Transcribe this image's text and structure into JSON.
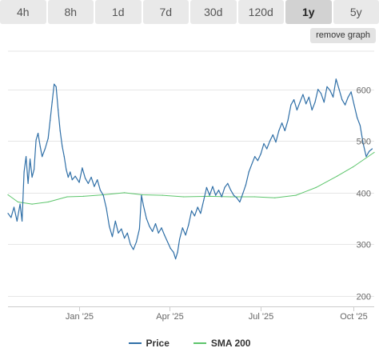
{
  "tabs": [
    {
      "label": "4h",
      "active": false
    },
    {
      "label": "8h",
      "active": false
    },
    {
      "label": "1d",
      "active": false
    },
    {
      "label": "7d",
      "active": false
    },
    {
      "label": "30d",
      "active": false
    },
    {
      "label": "120d",
      "active": false
    },
    {
      "label": "1y",
      "active": true
    },
    {
      "label": "5y",
      "active": false
    }
  ],
  "remove_graph_label": "remove graph",
  "legend": [
    {
      "label": "Price",
      "color": "#2f6fa7"
    },
    {
      "label": "SMA 200",
      "color": "#5cc56b"
    }
  ],
  "chart_data": {
    "type": "line",
    "y_ticks": [
      600,
      500,
      400,
      300,
      200
    ],
    "ylim": [
      180,
      680
    ],
    "xlim": [
      "2024-10-22",
      "2025-10-22"
    ],
    "x_ticks": [
      {
        "date": "2025-01-01",
        "label": "Jan '25"
      },
      {
        "date": "2025-04-01",
        "label": "Apr '25"
      },
      {
        "date": "2025-07-01",
        "label": "Jul '25"
      },
      {
        "date": "2025-10-01",
        "label": "Oct '25"
      }
    ],
    "grid": true,
    "legend_position": "bottom",
    "series": [
      {
        "name": "Price",
        "color": "#2f6fa7",
        "points": [
          [
            "2024-10-22",
            360
          ],
          [
            "2024-10-25",
            352
          ],
          [
            "2024-10-28",
            372
          ],
          [
            "2024-10-31",
            345
          ],
          [
            "2024-11-03",
            378
          ],
          [
            "2024-11-05",
            345
          ],
          [
            "2024-11-07",
            440
          ],
          [
            "2024-11-09",
            470
          ],
          [
            "2024-11-11",
            418
          ],
          [
            "2024-11-13",
            465
          ],
          [
            "2024-11-15",
            430
          ],
          [
            "2024-11-17",
            445
          ],
          [
            "2024-11-19",
            502
          ],
          [
            "2024-11-21",
            515
          ],
          [
            "2024-11-23",
            490
          ],
          [
            "2024-11-25",
            470
          ],
          [
            "2024-11-28",
            485
          ],
          [
            "2024-12-01",
            505
          ],
          [
            "2024-12-03",
            540
          ],
          [
            "2024-12-05",
            575
          ],
          [
            "2024-12-07",
            610
          ],
          [
            "2024-12-09",
            605
          ],
          [
            "2024-12-11",
            560
          ],
          [
            "2024-12-13",
            520
          ],
          [
            "2024-12-15",
            490
          ],
          [
            "2024-12-17",
            470
          ],
          [
            "2024-12-19",
            445
          ],
          [
            "2024-12-21",
            430
          ],
          [
            "2024-12-23",
            440
          ],
          [
            "2024-12-25",
            425
          ],
          [
            "2024-12-28",
            432
          ],
          [
            "2025-01-01",
            420
          ],
          [
            "2025-01-04",
            448
          ],
          [
            "2025-01-07",
            428
          ],
          [
            "2025-01-10",
            418
          ],
          [
            "2025-01-13",
            430
          ],
          [
            "2025-01-16",
            412
          ],
          [
            "2025-01-19",
            425
          ],
          [
            "2025-01-22",
            405
          ],
          [
            "2025-01-25",
            395
          ],
          [
            "2025-01-28",
            370
          ],
          [
            "2025-01-31",
            335
          ],
          [
            "2025-02-03",
            315
          ],
          [
            "2025-02-06",
            345
          ],
          [
            "2025-02-09",
            322
          ],
          [
            "2025-02-12",
            330
          ],
          [
            "2025-02-15",
            312
          ],
          [
            "2025-02-18",
            322
          ],
          [
            "2025-02-21",
            300
          ],
          [
            "2025-02-24",
            290
          ],
          [
            "2025-02-27",
            305
          ],
          [
            "2025-03-02",
            330
          ],
          [
            "2025-03-04",
            395
          ],
          [
            "2025-03-06",
            375
          ],
          [
            "2025-03-09",
            350
          ],
          [
            "2025-03-12",
            335
          ],
          [
            "2025-03-15",
            325
          ],
          [
            "2025-03-18",
            340
          ],
          [
            "2025-03-21",
            322
          ],
          [
            "2025-03-24",
            332
          ],
          [
            "2025-03-27",
            318
          ],
          [
            "2025-03-30",
            305
          ],
          [
            "2025-04-02",
            292
          ],
          [
            "2025-04-05",
            285
          ],
          [
            "2025-04-07",
            272
          ],
          [
            "2025-04-09",
            285
          ],
          [
            "2025-04-11",
            310
          ],
          [
            "2025-04-14",
            332
          ],
          [
            "2025-04-17",
            318
          ],
          [
            "2025-04-20",
            338
          ],
          [
            "2025-04-23",
            365
          ],
          [
            "2025-04-26",
            355
          ],
          [
            "2025-04-29",
            372
          ],
          [
            "2025-05-02",
            360
          ],
          [
            "2025-05-05",
            385
          ],
          [
            "2025-05-08",
            410
          ],
          [
            "2025-05-11",
            395
          ],
          [
            "2025-05-14",
            412
          ],
          [
            "2025-05-17",
            395
          ],
          [
            "2025-05-20",
            405
          ],
          [
            "2025-05-23",
            392
          ],
          [
            "2025-05-26",
            410
          ],
          [
            "2025-05-29",
            418
          ],
          [
            "2025-06-01",
            405
          ],
          [
            "2025-06-04",
            395
          ],
          [
            "2025-06-07",
            390
          ],
          [
            "2025-06-10",
            382
          ],
          [
            "2025-06-13",
            398
          ],
          [
            "2025-06-16",
            415
          ],
          [
            "2025-06-19",
            440
          ],
          [
            "2025-06-22",
            455
          ],
          [
            "2025-06-25",
            470
          ],
          [
            "2025-06-28",
            462
          ],
          [
            "2025-07-01",
            475
          ],
          [
            "2025-07-04",
            495
          ],
          [
            "2025-07-07",
            485
          ],
          [
            "2025-07-10",
            500
          ],
          [
            "2025-07-13",
            512
          ],
          [
            "2025-07-16",
            498
          ],
          [
            "2025-07-19",
            520
          ],
          [
            "2025-07-22",
            535
          ],
          [
            "2025-07-25",
            520
          ],
          [
            "2025-07-28",
            540
          ],
          [
            "2025-07-31",
            570
          ],
          [
            "2025-08-03",
            580
          ],
          [
            "2025-08-06",
            560
          ],
          [
            "2025-08-09",
            575
          ],
          [
            "2025-08-12",
            590
          ],
          [
            "2025-08-15",
            572
          ],
          [
            "2025-08-18",
            585
          ],
          [
            "2025-08-21",
            560
          ],
          [
            "2025-08-24",
            575
          ],
          [
            "2025-08-27",
            600
          ],
          [
            "2025-08-30",
            592
          ],
          [
            "2025-09-02",
            575
          ],
          [
            "2025-09-05",
            605
          ],
          [
            "2025-09-08",
            598
          ],
          [
            "2025-09-11",
            585
          ],
          [
            "2025-09-14",
            620
          ],
          [
            "2025-09-17",
            600
          ],
          [
            "2025-09-20",
            580
          ],
          [
            "2025-09-23",
            570
          ],
          [
            "2025-09-26",
            585
          ],
          [
            "2025-09-29",
            595
          ],
          [
            "2025-10-02",
            570
          ],
          [
            "2025-10-05",
            545
          ],
          [
            "2025-10-08",
            530
          ],
          [
            "2025-10-11",
            495
          ],
          [
            "2025-10-14",
            470
          ],
          [
            "2025-10-17",
            480
          ],
          [
            "2025-10-20",
            485
          ]
        ]
      },
      {
        "name": "SMA 200",
        "color": "#5cc56b",
        "points": [
          [
            "2024-10-22",
            396
          ],
          [
            "2024-11-01",
            382
          ],
          [
            "2024-11-15",
            378
          ],
          [
            "2024-12-01",
            382
          ],
          [
            "2024-12-20",
            392
          ],
          [
            "2025-01-05",
            393
          ],
          [
            "2025-01-25",
            396
          ],
          [
            "2025-02-15",
            400
          ],
          [
            "2025-03-05",
            396
          ],
          [
            "2025-03-25",
            395
          ],
          [
            "2025-04-15",
            392
          ],
          [
            "2025-05-10",
            393
          ],
          [
            "2025-06-01",
            392
          ],
          [
            "2025-06-25",
            392
          ],
          [
            "2025-07-15",
            390
          ],
          [
            "2025-08-05",
            395
          ],
          [
            "2025-08-25",
            410
          ],
          [
            "2025-09-15",
            432
          ],
          [
            "2025-10-01",
            450
          ],
          [
            "2025-10-22",
            478
          ]
        ]
      }
    ]
  }
}
